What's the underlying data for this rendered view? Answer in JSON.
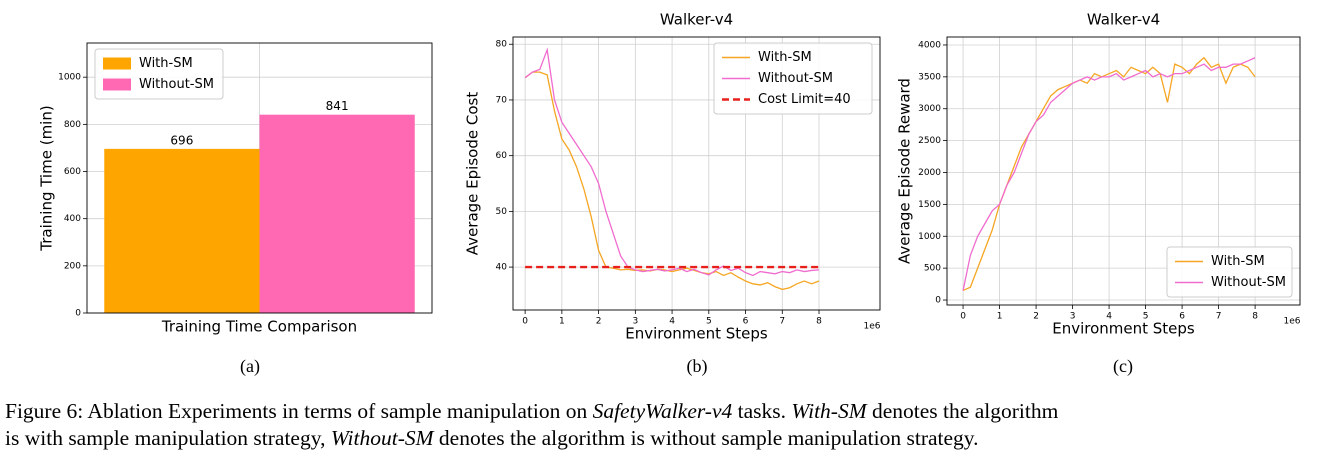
{
  "chart_data": [
    {
      "type": "bar",
      "ylabel": "Training Time (min)",
      "xlabel": "Training Time Comparison",
      "panel_label": "(a)",
      "categories": [
        null
      ],
      "series": [
        {
          "name": "With-SM",
          "color": "#ffa500",
          "values": [
            696
          ]
        },
        {
          "name": "Without-SM",
          "color": "#ff69b4",
          "values": [
            841
          ]
        }
      ],
      "ylim": [
        0,
        1145
      ],
      "yticks": [
        0,
        200,
        400,
        600,
        800,
        1000
      ],
      "grid": true,
      "legend": "upper left"
    },
    {
      "type": "line",
      "title": "Walker-v4",
      "ylabel": "Average Episode Cost",
      "xlabel": "Environment Steps",
      "x_offset_label": "1e6",
      "panel_label": "(b)",
      "x": [
        0,
        0.2,
        0.4,
        0.6,
        0.8,
        1,
        1.2,
        1.4,
        1.6,
        1.8,
        2,
        2.2,
        2.4,
        2.6,
        2.8,
        3,
        3.2,
        3.4,
        3.6,
        3.8,
        4,
        4.2,
        4.4,
        4.6,
        4.8,
        5,
        5.2,
        5.4,
        5.6,
        5.8,
        6,
        6.2,
        6.4,
        6.6,
        6.8,
        7,
        7.2,
        7.4,
        7.6,
        7.8,
        8
      ],
      "series": [
        {
          "name": "With-SM",
          "color": "#f5a623",
          "linestyle": "solid",
          "values": [
            74,
            75,
            75,
            74.5,
            68,
            63,
            61,
            58,
            54,
            49,
            43,
            40,
            39.8,
            39.5,
            39.6,
            39.4,
            39.5,
            39.3,
            39.6,
            39.5,
            39.2,
            39.5,
            39.8,
            39.4,
            39,
            38.8,
            39.2,
            38.5,
            39,
            38.2,
            37.5,
            37,
            36.8,
            37.2,
            36.5,
            36,
            36.3,
            37,
            37.5,
            37,
            37.5
          ]
        },
        {
          "name": "Without-SM",
          "color": "#f06ccf",
          "linestyle": "solid",
          "values": [
            74,
            75,
            75.5,
            79,
            70,
            66,
            64,
            62,
            60,
            58,
            55,
            50,
            46,
            42,
            40,
            39.5,
            39.2,
            39.4,
            39.6,
            39.3,
            39.5,
            39.8,
            39.2,
            39.6,
            39,
            38.6,
            39.5,
            40.2,
            39.4,
            39.8,
            39,
            38.5,
            39.2,
            39,
            38.8,
            39.2,
            39,
            39.5,
            39.2,
            39.4,
            39.5
          ]
        },
        {
          "name": "Cost Limit=40",
          "color": "#e8201c",
          "linestyle": "dashed",
          "values": [
            40,
            40,
            40,
            40,
            40,
            40,
            40,
            40,
            40,
            40,
            40,
            40,
            40,
            40,
            40,
            40,
            40,
            40,
            40,
            40,
            40,
            40,
            40,
            40,
            40,
            40,
            40,
            40,
            40,
            40,
            40,
            40,
            40,
            40,
            40,
            40,
            40,
            40,
            40,
            40,
            40
          ]
        }
      ],
      "xlim": [
        -0.33,
        9.66
      ],
      "xticks": [
        0,
        1,
        2,
        3,
        4,
        5,
        6,
        7,
        8
      ],
      "ylim": [
        32.3,
        81.3
      ],
      "yticks": [
        40,
        50,
        60,
        70,
        80
      ],
      "grid": true,
      "legend": "upper right"
    },
    {
      "type": "line",
      "title": "Walker-v4",
      "ylabel": "Average Episode Reward",
      "xlabel": "Environment Steps",
      "x_offset_label": "1e6",
      "panel_label": "(c)",
      "x": [
        0,
        0.2,
        0.4,
        0.6,
        0.8,
        1,
        1.2,
        1.4,
        1.6,
        1.8,
        2,
        2.2,
        2.4,
        2.6,
        2.8,
        3,
        3.2,
        3.4,
        3.6,
        3.8,
        4,
        4.2,
        4.4,
        4.6,
        4.8,
        5,
        5.2,
        5.4,
        5.6,
        5.8,
        6,
        6.2,
        6.4,
        6.6,
        6.8,
        7,
        7.2,
        7.4,
        7.6,
        7.8,
        8
      ],
      "series": [
        {
          "name": "With-SM",
          "color": "#f5a623",
          "linestyle": "solid",
          "values": [
            150,
            200,
            500,
            800,
            1100,
            1500,
            1800,
            2100,
            2400,
            2600,
            2800,
            3000,
            3200,
            3300,
            3350,
            3400,
            3450,
            3400,
            3550,
            3500,
            3550,
            3600,
            3500,
            3650,
            3600,
            3550,
            3650,
            3550,
            3100,
            3700,
            3650,
            3550,
            3700,
            3800,
            3650,
            3700,
            3400,
            3650,
            3700,
            3650,
            3500
          ]
        },
        {
          "name": "Without-SM",
          "color": "#f06ccf",
          "linestyle": "solid",
          "values": [
            150,
            700,
            1000,
            1200,
            1400,
            1500,
            1800,
            2000,
            2300,
            2600,
            2800,
            2900,
            3100,
            3200,
            3300,
            3400,
            3450,
            3500,
            3450,
            3500,
            3500,
            3550,
            3450,
            3500,
            3550,
            3600,
            3500,
            3550,
            3500,
            3550,
            3550,
            3600,
            3650,
            3700,
            3600,
            3650,
            3650,
            3700,
            3700,
            3750,
            3800
          ]
        }
      ],
      "xlim": [
        -0.44,
        9.23
      ],
      "xticks": [
        0,
        1,
        2,
        3,
        4,
        5,
        6,
        7,
        8
      ],
      "ylim": [
        -78,
        4125
      ],
      "yticks": [
        0,
        500,
        1000,
        1500,
        2000,
        2500,
        3000,
        3500,
        4000
      ],
      "grid": true,
      "legend": "lower right"
    }
  ],
  "caption": [
    "Figure 6: Ablation Experiments in terms of sample manipulation on ",
    "SafetyWalker-v4",
    " tasks. ",
    "With-SM",
    " denotes the algorithm",
    "is with sample manipulation strategy, ",
    "Without-SM",
    " denotes the algorithm is without sample manipulation strategy."
  ]
}
